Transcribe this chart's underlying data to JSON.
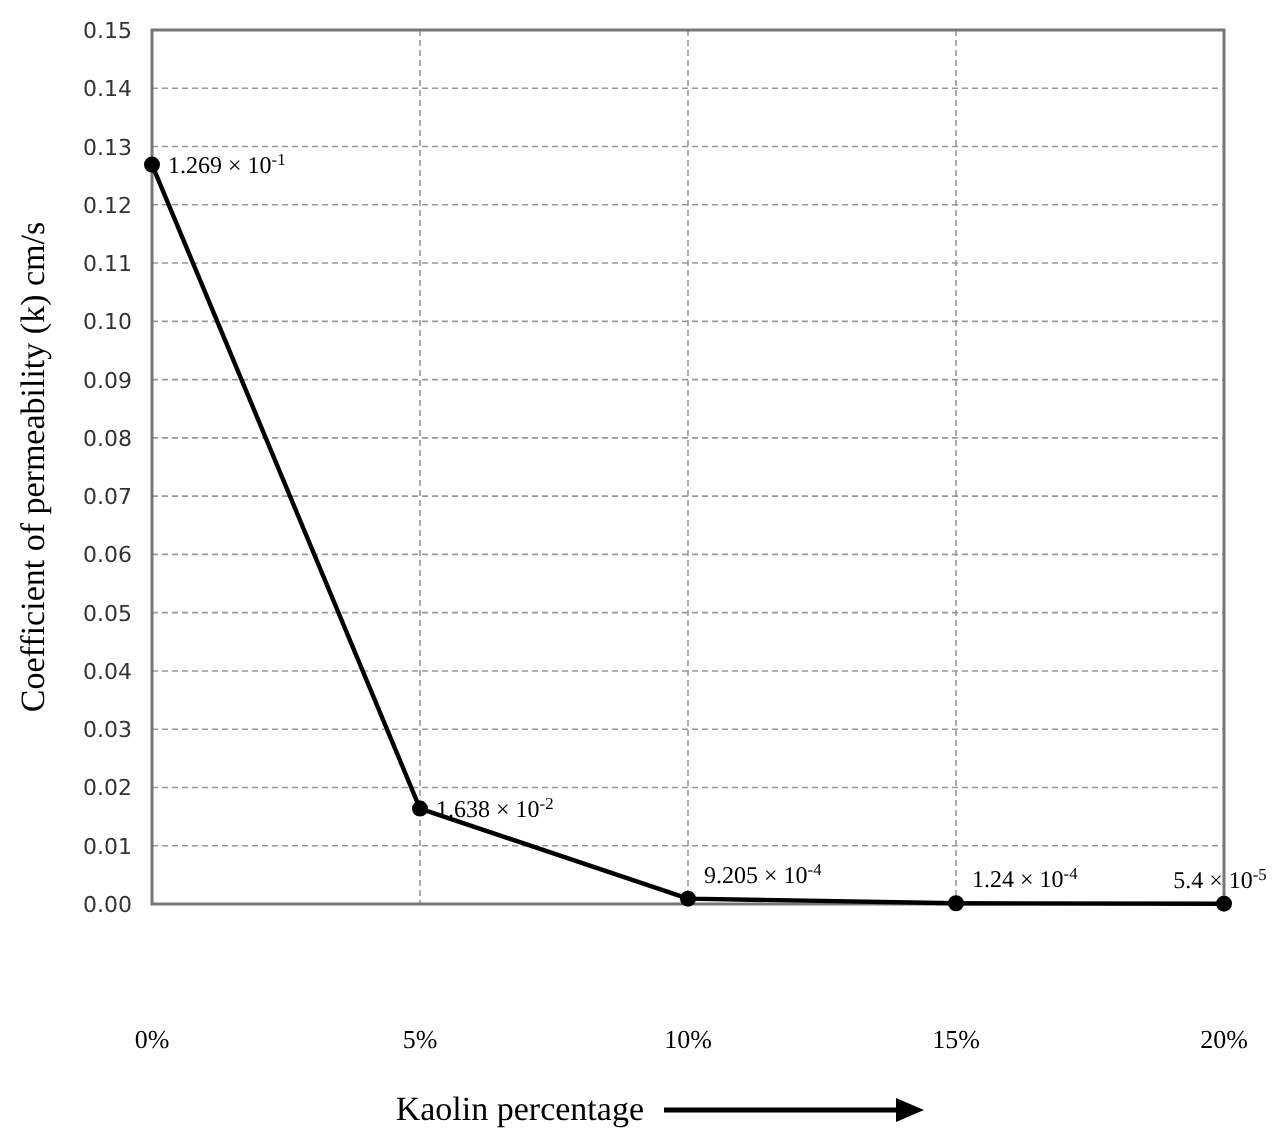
{
  "chart_data": {
    "type": "line",
    "xlabel": "Kaolin percentage",
    "ylabel": "Coefficient of permeability (k) cm/s",
    "categories": [
      "0%",
      "5%",
      "10%",
      "15%",
      "20%"
    ],
    "series": [
      {
        "color": "#000000",
        "values": [
          0.1269,
          0.01638,
          0.0009205,
          0.000124,
          5.4e-05
        ],
        "value_labels": [
          "1.269 × 10$^{-1}$",
          "1.638 × 10$^{-2}$",
          "9.205 × 10$^{-4}$",
          "1.24 × 10$^{-4}$",
          "5.4 × 10$^{-5}$"
        ]
      }
    ],
    "ylim": [
      0,
      0.15
    ],
    "yticks": [
      {
        "value": 0,
        "label": "0.00"
      },
      0.01,
      0.02,
      0.03,
      0.04,
      0.05,
      0.06,
      0.07,
      0.08,
      0.09,
      {
        "value": 0.1,
        "label": "0.10"
      },
      0.11,
      0.12,
      0.13,
      0.14,
      0.15
    ],
    "grid": true,
    "marker": "circle",
    "line_style": "solid"
  }
}
